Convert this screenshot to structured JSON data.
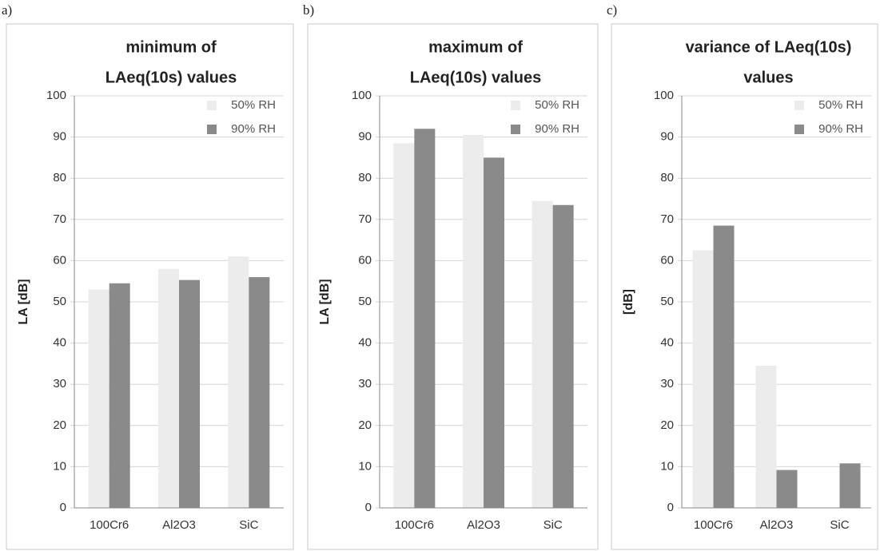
{
  "chart_data": [
    {
      "type": "bar",
      "label": "a)",
      "title": [
        "minimum of",
        "LAeq(10s) values"
      ],
      "ylabel": "LA [dB]",
      "categories": [
        "100Cr6",
        "Al2O3",
        "SiC"
      ],
      "series": [
        {
          "name": "50% RH",
          "color": "#ececec",
          "values": [
            53,
            58,
            61
          ]
        },
        {
          "name": "90% RH",
          "color": "#8a8a8a",
          "values": [
            54.5,
            55.3,
            56
          ]
        }
      ],
      "ylim": [
        0,
        100
      ],
      "yticks": [
        0,
        10,
        20,
        30,
        40,
        50,
        60,
        70,
        80,
        90,
        100
      ],
      "grid": true,
      "legend": "upper right"
    },
    {
      "type": "bar",
      "label": "b)",
      "title": [
        "maximum of",
        "LAeq(10s) values"
      ],
      "ylabel": "LA [dB]",
      "categories": [
        "100Cr6",
        "Al2O3",
        "SiC"
      ],
      "series": [
        {
          "name": "50% RH",
          "color": "#ececec",
          "values": [
            88.5,
            90.5,
            74.5
          ]
        },
        {
          "name": "90% RH",
          "color": "#8a8a8a",
          "values": [
            92,
            85,
            73.5
          ]
        }
      ],
      "ylim": [
        0,
        100
      ],
      "yticks": [
        0,
        10,
        20,
        30,
        40,
        50,
        60,
        70,
        80,
        90,
        100
      ],
      "grid": true,
      "legend": "upper right"
    },
    {
      "type": "bar",
      "label": "c)",
      "title": [
        "variance of LAeq(10s)",
        "values"
      ],
      "ylabel": "[dB]",
      "categories": [
        "100Cr6",
        "Al2O3",
        "SiC"
      ],
      "series": [
        {
          "name": "50% RH",
          "color": "#ececec",
          "values": [
            62.5,
            34.5,
            0
          ]
        },
        {
          "name": "90% RH",
          "color": "#8a8a8a",
          "values": [
            68.5,
            9.2,
            10.8
          ]
        }
      ],
      "ylim": [
        0,
        100
      ],
      "yticks": [
        0,
        10,
        20,
        30,
        40,
        50,
        60,
        70,
        80,
        90,
        100
      ],
      "grid": true,
      "legend": "upper right"
    }
  ]
}
